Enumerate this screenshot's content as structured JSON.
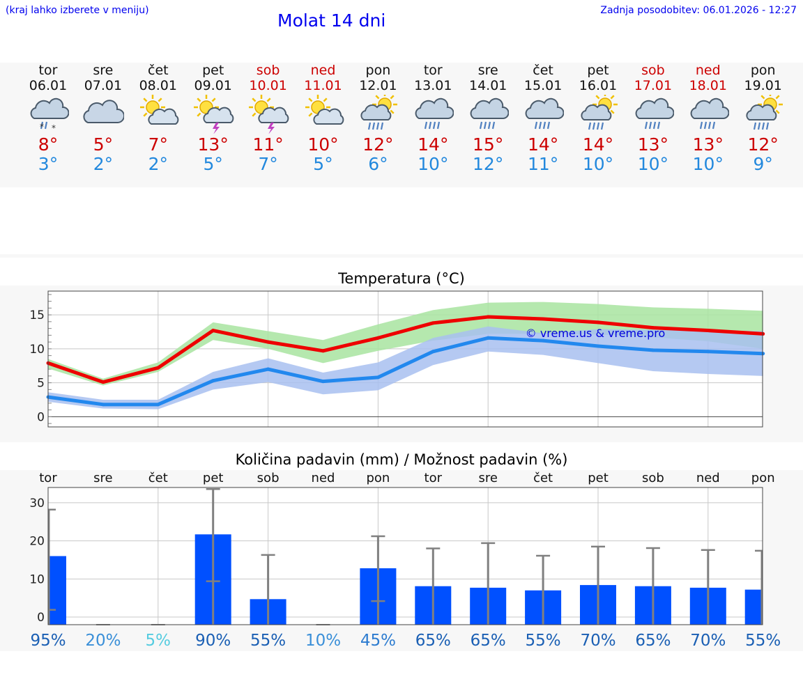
{
  "header": {
    "left_note": "(kraj lahko izberete v meniju)",
    "title": "Molat 14 dni",
    "updated": "Zadnja posodobitev: 06.01.2026 - 12:27"
  },
  "days": [
    {
      "name": "tor",
      "date": "06.01",
      "icon": "cloud-rain-snow-icon",
      "tmax": "8°",
      "tmin": "3°",
      "weekend": false
    },
    {
      "name": "sre",
      "date": "07.01",
      "icon": "cloudy-icon",
      "tmax": "5°",
      "tmin": "2°",
      "weekend": false
    },
    {
      "name": "čet",
      "date": "08.01",
      "icon": "sun-cloud-icon",
      "tmax": "7°",
      "tmin": "2°",
      "weekend": false
    },
    {
      "name": "pet",
      "date": "09.01",
      "icon": "sun-thunderstorm-icon",
      "tmax": "13°",
      "tmin": "5°",
      "weekend": false
    },
    {
      "name": "sob",
      "date": "10.01",
      "icon": "sun-thunderstorm-icon",
      "tmax": "11°",
      "tmin": "7°",
      "weekend": true
    },
    {
      "name": "ned",
      "date": "11.01",
      "icon": "sun-cloud-icon",
      "tmax": "10°",
      "tmin": "5°",
      "weekend": true
    },
    {
      "name": "pon",
      "date": "12.01",
      "icon": "sun-cloud-rain-icon",
      "tmax": "12°",
      "tmin": "6°",
      "weekend": false
    },
    {
      "name": "tor",
      "date": "13.01",
      "icon": "cloud-rain-icon",
      "tmax": "14°",
      "tmin": "10°",
      "weekend": false
    },
    {
      "name": "sre",
      "date": "14.01",
      "icon": "cloud-rain-icon",
      "tmax": "15°",
      "tmin": "12°",
      "weekend": false
    },
    {
      "name": "čet",
      "date": "15.01",
      "icon": "cloud-rain-icon",
      "tmax": "14°",
      "tmin": "11°",
      "weekend": false
    },
    {
      "name": "pet",
      "date": "16.01",
      "icon": "sun-cloud-rain-icon",
      "tmax": "14°",
      "tmin": "10°",
      "weekend": false
    },
    {
      "name": "sob",
      "date": "17.01",
      "icon": "cloud-rain-icon",
      "tmax": "13°",
      "tmin": "10°",
      "weekend": true
    },
    {
      "name": "ned",
      "date": "18.01",
      "icon": "cloud-rain-icon",
      "tmax": "13°",
      "tmin": "10°",
      "weekend": true
    },
    {
      "name": "pon",
      "date": "19.01",
      "icon": "sun-cloud-rain-icon",
      "tmax": "12°",
      "tmin": "9°",
      "weekend": false
    }
  ],
  "colors": {
    "max": "#ee0000",
    "min": "#2288ee",
    "max_band": "#a8e4a0",
    "min_band": "#a8c0f0",
    "bar": "#0050ff",
    "whisker": "#808080",
    "weekend": "#cc0000"
  },
  "chart_data": [
    {
      "type": "line",
      "title": "Temperatura (°C)",
      "ylim": [
        -1.5,
        18.5
      ],
      "yticks": [
        0,
        5,
        10,
        15
      ],
      "x": [
        0,
        1,
        2,
        3,
        4,
        5,
        6,
        7,
        8,
        9,
        10,
        11,
        12,
        13
      ],
      "watermark": "© vreme.us & vreme.pro",
      "series": [
        {
          "name": "max",
          "values": [
            7.9,
            5.1,
            7.2,
            12.7,
            11.0,
            9.7,
            11.6,
            13.8,
            14.7,
            14.4,
            13.9,
            13.1,
            12.7,
            12.2
          ],
          "band_low": [
            7.1,
            4.6,
            6.6,
            11.3,
            10.0,
            7.9,
            9.7,
            11.2,
            12.2,
            12.2,
            12.1,
            11.7,
            11.1,
            10.0
          ],
          "band_high": [
            8.5,
            5.6,
            8.0,
            13.9,
            12.6,
            11.3,
            13.6,
            15.7,
            16.8,
            16.9,
            16.6,
            16.1,
            15.9,
            15.6
          ]
        },
        {
          "name": "min",
          "values": [
            2.9,
            1.8,
            1.8,
            5.3,
            7.0,
            5.2,
            5.8,
            9.6,
            11.6,
            11.2,
            10.4,
            9.8,
            9.6,
            9.3
          ],
          "band_low": [
            2.2,
            1.2,
            1.1,
            4.0,
            5.1,
            3.3,
            3.9,
            7.6,
            9.6,
            9.1,
            7.9,
            6.7,
            6.3,
            6.0
          ],
          "band_high": [
            3.6,
            2.5,
            2.5,
            6.6,
            8.6,
            6.5,
            8.0,
            11.6,
            13.3,
            12.3,
            12.9,
            12.8,
            12.7,
            12.6
          ]
        }
      ]
    },
    {
      "type": "bar",
      "title": "Količina padavin (mm) / Možnost padavin (%)",
      "categories": [
        "tor",
        "sre",
        "čet",
        "pet",
        "sob",
        "ned",
        "pon",
        "tor",
        "sre",
        "čet",
        "pet",
        "sob",
        "ned",
        "pon"
      ],
      "ylim": [
        -2,
        34
      ],
      "yticks": [
        0,
        10,
        20,
        30
      ],
      "values": [
        16.0,
        0,
        0,
        21.7,
        4.7,
        0,
        12.8,
        8.1,
        7.7,
        7.0,
        8.4,
        8.1,
        7.7,
        7.2
      ],
      "err_low": [
        1.9,
        0,
        0,
        9.4,
        0,
        0,
        4.2,
        0,
        0,
        0,
        0,
        0,
        0,
        0
      ],
      "err_high": [
        28.2,
        0,
        0,
        33.6,
        16.3,
        0,
        21.2,
        18.0,
        19.4,
        16.1,
        18.5,
        18.1,
        17.6,
        17.4
      ],
      "probabilities": [
        "95%",
        "20%",
        "5%",
        "90%",
        "55%",
        "10%",
        "45%",
        "65%",
        "65%",
        "55%",
        "70%",
        "65%",
        "70%",
        "55%"
      ],
      "prob_colors": [
        "#1a5fb4",
        "#3a8fd8",
        "#55cce0",
        "#1a5fb4",
        "#1a5fb4",
        "#3a8fd8",
        "#2d7cd0",
        "#1a5fb4",
        "#1a5fb4",
        "#1a5fb4",
        "#1a5fb4",
        "#1a5fb4",
        "#1a5fb4",
        "#1a5fb4"
      ]
    }
  ]
}
